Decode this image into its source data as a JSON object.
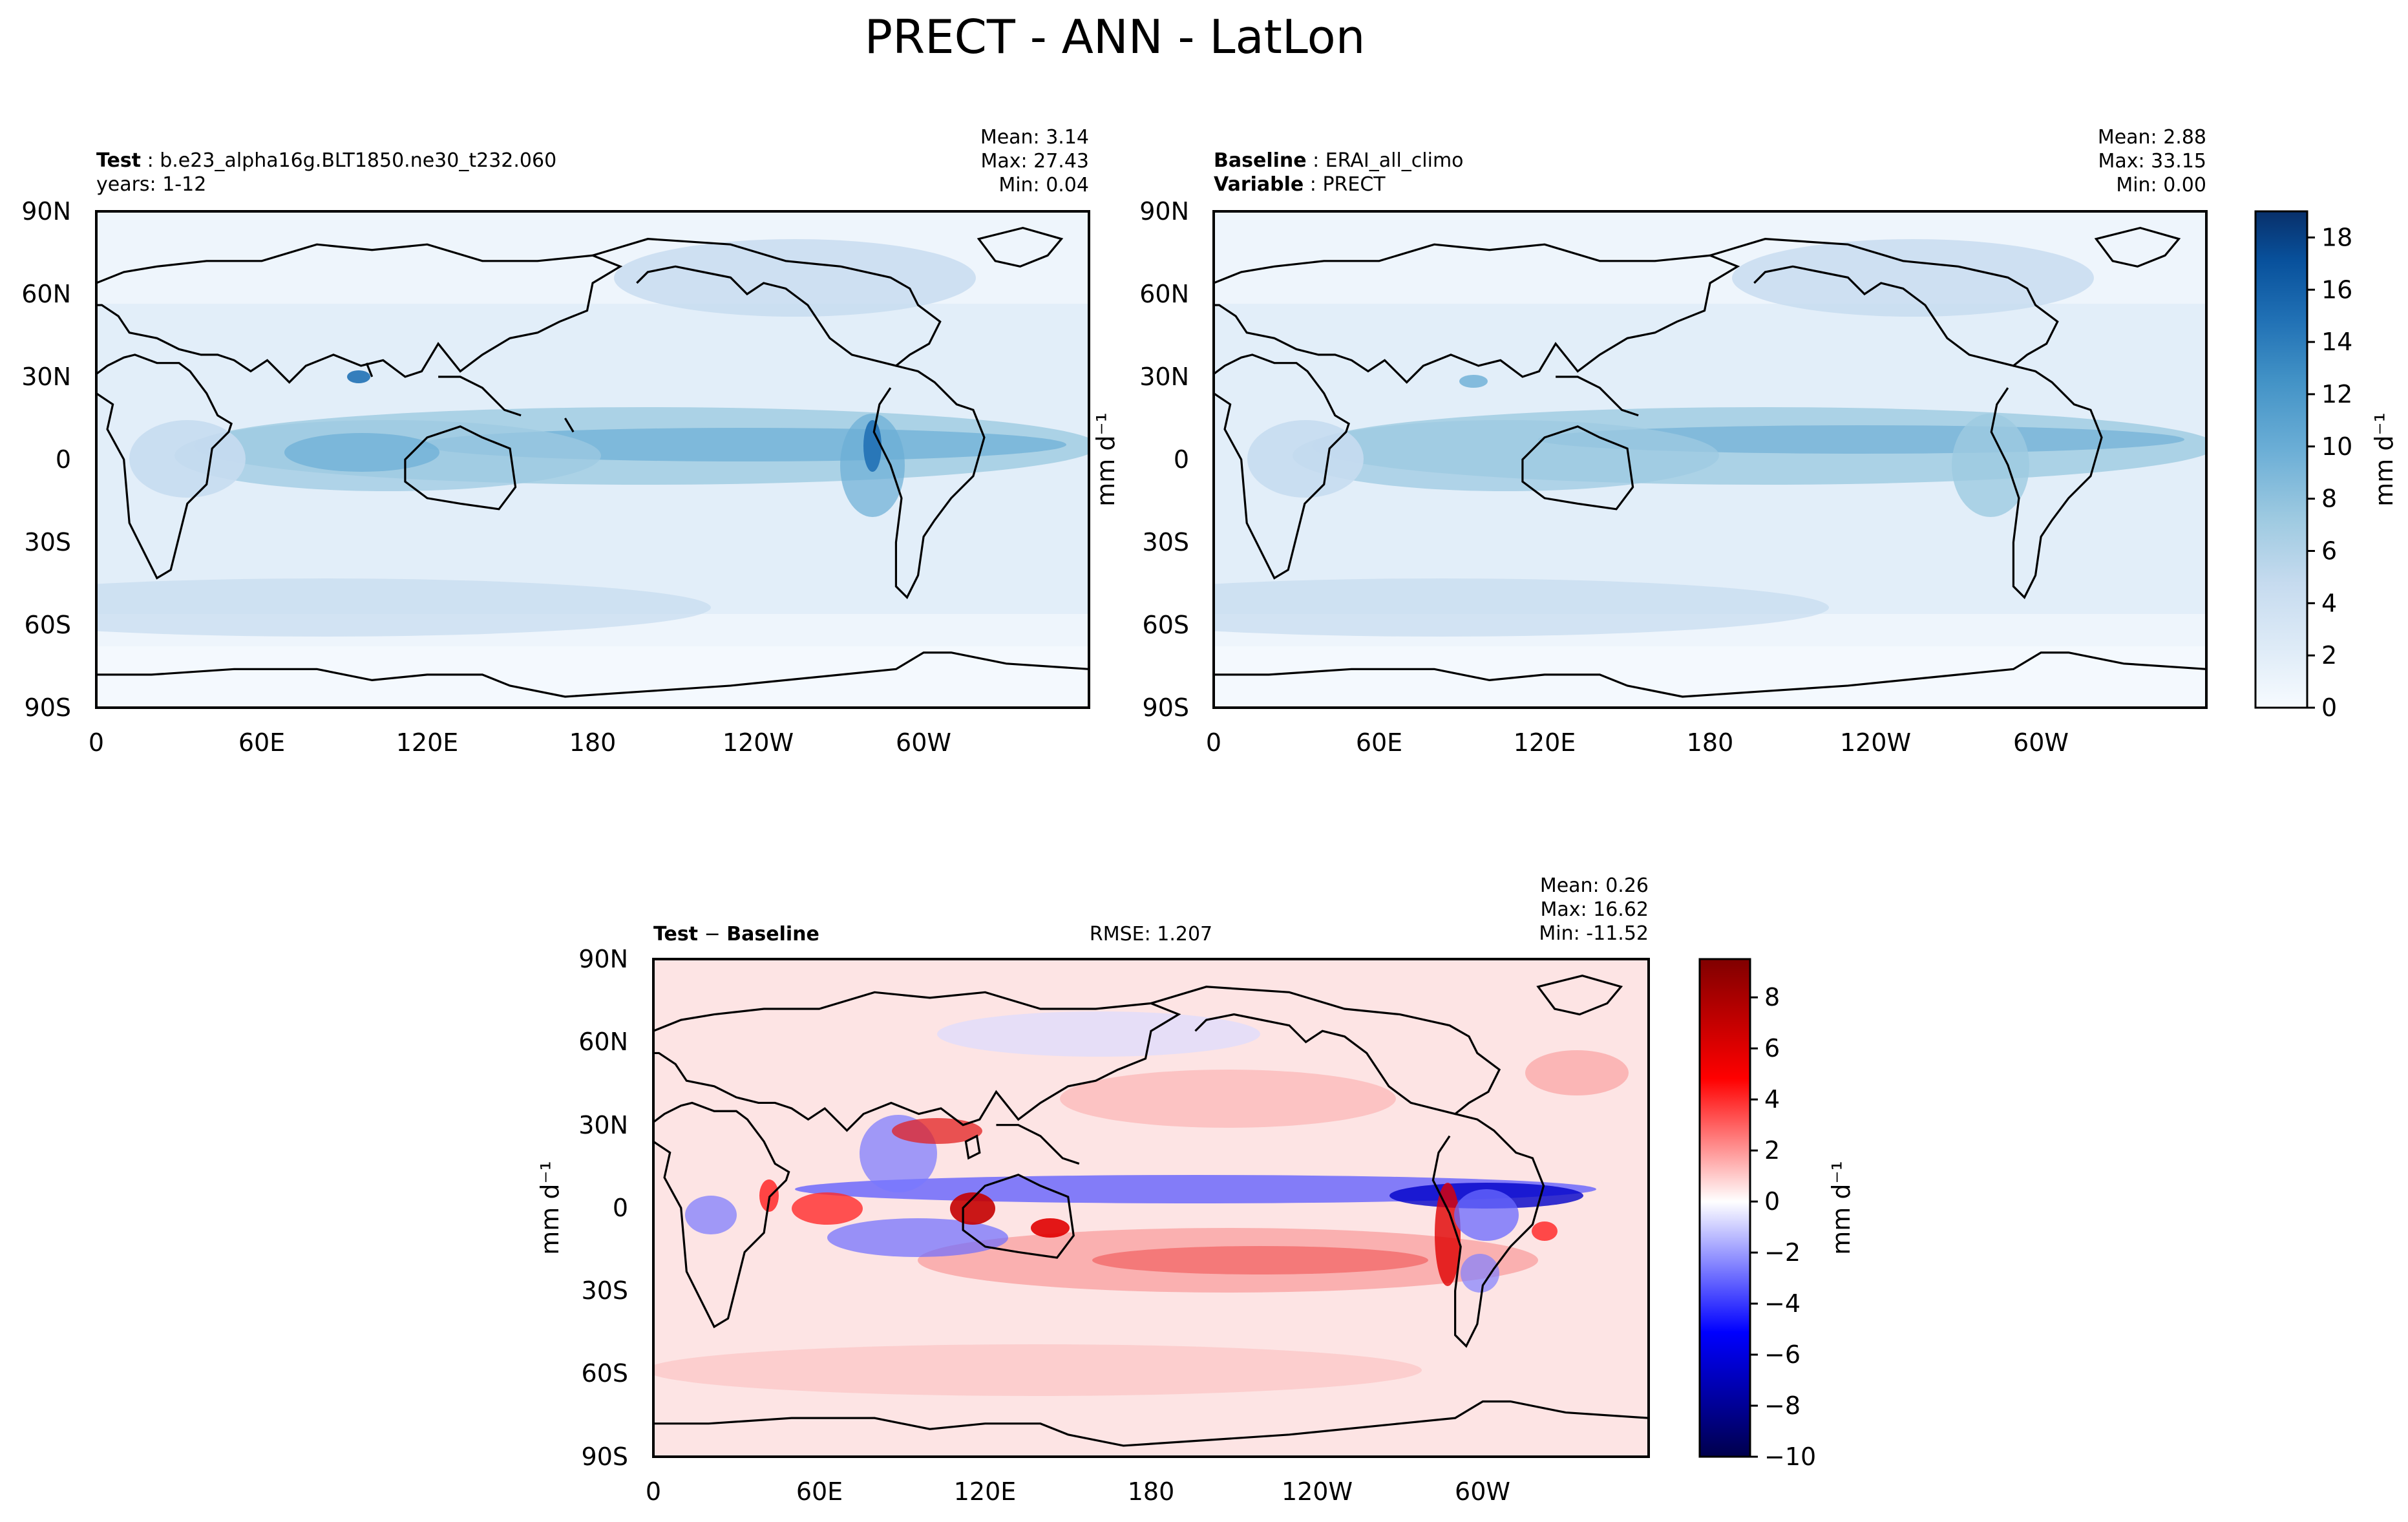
{
  "figure": {
    "title": "PRECT - ANN - LatLon"
  },
  "panels": {
    "test": {
      "label_bold": "Test",
      "label_text": "b.e23_alpha16g.BLT1850.ne30_t232.060",
      "line2": "years: 1-12",
      "mean": "Mean:  3.14",
      "max": "Max: 27.43",
      "min": "Min:  0.04"
    },
    "baseline": {
      "label_bold": "Baseline",
      "label_text": "ERAI_all_climo",
      "line2_bold": "Variable",
      "line2_text": "PRECT",
      "mean": "Mean:  2.88",
      "max": "Max: 33.15",
      "min": "Min:  0.00"
    },
    "diff": {
      "label_bold_a": "Test",
      "label_sep": " − ",
      "label_bold_b": "Baseline",
      "rmse": "RMSE: 1.207",
      "mean": "Mean:  0.26",
      "max": "Max: 16.62",
      "min": "Min: -11.52"
    }
  },
  "colors": {
    "blue_scale": [
      "#f7fbff",
      "#deebf7",
      "#c6dbef",
      "#9ecae1",
      "#6baed6",
      "#4292c6",
      "#2171b5",
      "#08519c",
      "#08306b"
    ],
    "diff_scale": [
      "#00004c",
      "#0000ff",
      "#ffffff",
      "#ff0000",
      "#800000"
    ],
    "coast": "#000000"
  },
  "chart_data": [
    {
      "type": "heatmap",
      "name": "Test",
      "xlabel": "",
      "ylabel": "",
      "x_ticks": [
        "0",
        "60E",
        "120E",
        "180",
        "120W",
        "60W"
      ],
      "y_ticks": [
        "90N",
        "60N",
        "30N",
        "0",
        "30S",
        "60S",
        "90S"
      ],
      "xlim": [
        0,
        360
      ],
      "ylim": [
        -90,
        90
      ],
      "colorbar": "shared_with_baseline",
      "stats": {
        "mean": 3.14,
        "max": 27.43,
        "min": 0.04
      }
    },
    {
      "type": "heatmap",
      "name": "Baseline",
      "xlabel": "",
      "ylabel": "mm d⁻¹",
      "x_ticks": [
        "0",
        "60E",
        "120E",
        "180",
        "120W",
        "60W"
      ],
      "y_ticks": [
        "90N",
        "60N",
        "30N",
        "0",
        "30S",
        "60S",
        "90S"
      ],
      "xlim": [
        0,
        360
      ],
      "ylim": [
        -90,
        90
      ],
      "colorbar": {
        "label": "mm d⁻¹",
        "ticks": [
          "0",
          "2",
          "4",
          "6",
          "8",
          "10",
          "12",
          "14",
          "16",
          "18"
        ],
        "range": [
          0,
          19
        ]
      },
      "stats": {
        "mean": 2.88,
        "max": 33.15,
        "min": 0.0
      }
    },
    {
      "type": "heatmap",
      "name": "Test − Baseline",
      "xlabel": "",
      "ylabel": "mm d⁻¹",
      "x_ticks": [
        "0",
        "60E",
        "120E",
        "180",
        "120W",
        "60W"
      ],
      "y_ticks": [
        "90N",
        "60N",
        "30N",
        "0",
        "30S",
        "60S",
        "90S"
      ],
      "xlim": [
        0,
        360
      ],
      "ylim": [
        -90,
        90
      ],
      "colorbar": {
        "label": "mm d⁻¹",
        "ticks": [
          "−10",
          "−8",
          "−6",
          "−4",
          "−2",
          "0",
          "2",
          "4",
          "6",
          "8"
        ],
        "range": [
          -10,
          9.5
        ]
      },
      "stats": {
        "mean": 0.26,
        "max": 16.62,
        "min": -11.52,
        "rmse": 1.207
      }
    }
  ]
}
